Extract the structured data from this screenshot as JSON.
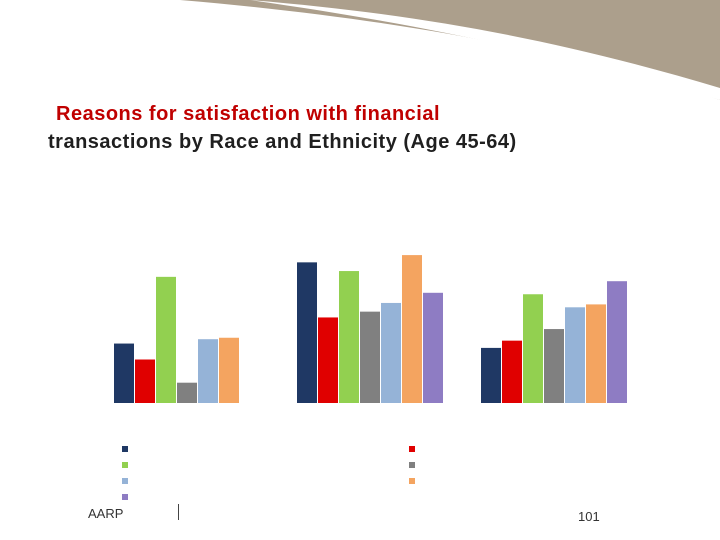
{
  "title": {
    "line1": "Reasons for satisfaction with financial",
    "line2": "transactions by Race and Ethnicity (Age 45-64)"
  },
  "footer": {
    "org": "AARP",
    "page_number": "101"
  },
  "colors": {
    "header_band": "#ac9f8c",
    "header_highlight": "#ffffff"
  },
  "chart_data": {
    "type": "bar",
    "title": "Reasons for satisfaction with financial transactions by Race and Ethnicity (Age 45-64)",
    "xlabel": "",
    "ylabel": "",
    "ylim": [
      0,
      100
    ],
    "categories": [
      "",
      "",
      ""
    ],
    "series": [
      {
        "name": "",
        "color": "#1f3864",
        "values": [
          41,
          97,
          38
        ]
      },
      {
        "name": "",
        "color": "#e00000",
        "values": [
          30,
          59,
          43
        ]
      },
      {
        "name": "",
        "color": "#92d050",
        "values": [
          87,
          91,
          75
        ]
      },
      {
        "name": "",
        "color": "#808080",
        "values": [
          14,
          63,
          51
        ]
      },
      {
        "name": "",
        "color": "#95b3d7",
        "values": [
          44,
          69,
          66
        ]
      },
      {
        "name": "",
        "color": "#f4a460",
        "values": [
          45,
          102,
          68
        ]
      },
      {
        "name": "",
        "color": "#8e7cc3",
        "values": [
          0,
          76,
          84
        ]
      }
    ],
    "legend_position": "bottom"
  }
}
